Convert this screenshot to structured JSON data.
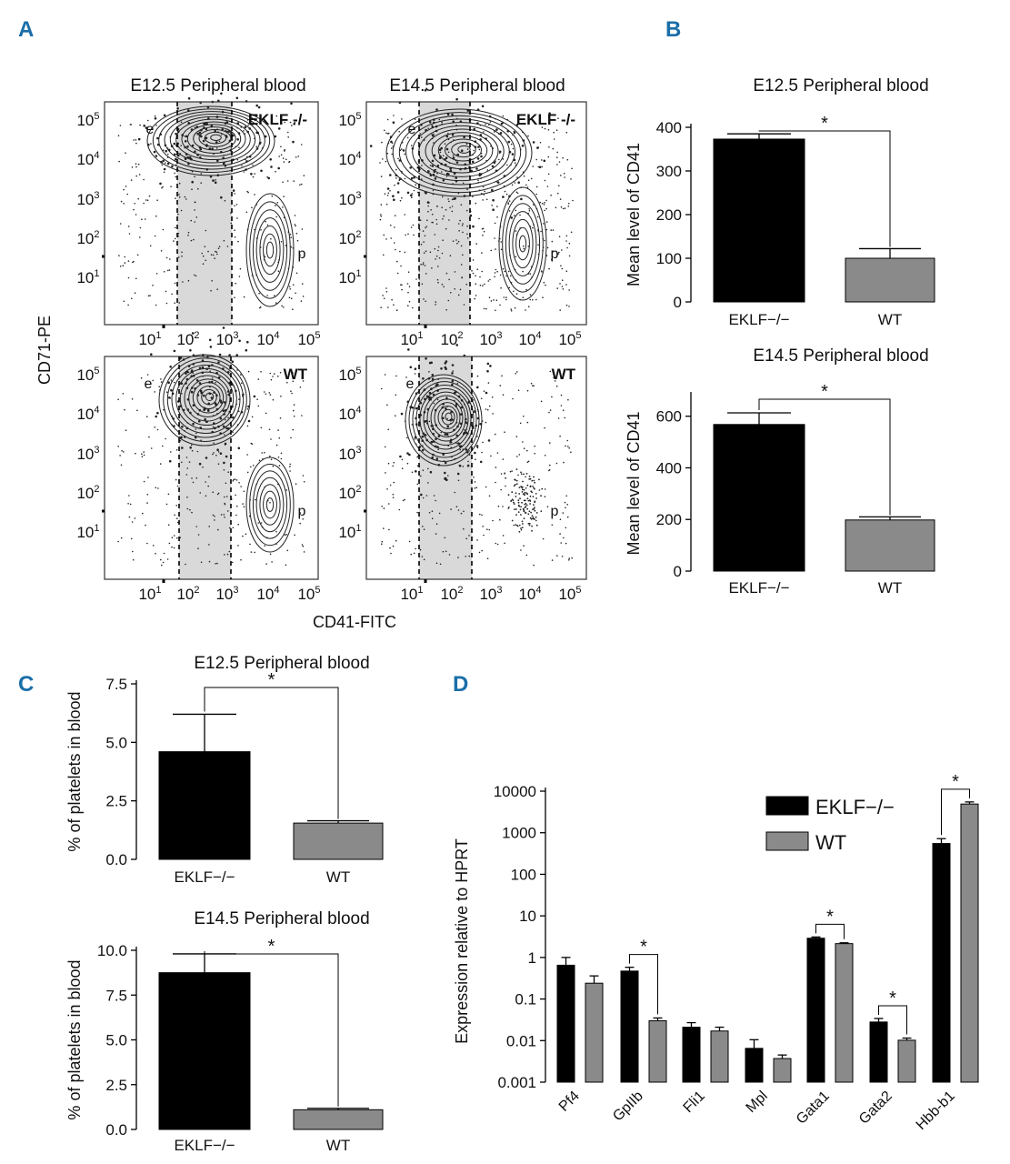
{
  "panels": {
    "a": "A",
    "b": "B",
    "c": "C",
    "d": "D"
  },
  "colors": {
    "eklf": "#000000",
    "wt": "#8a8a8a",
    "gate": "#d9d9d9"
  },
  "flow": {
    "title_left": "E12.5 Peripheral blood",
    "title_right": "E14.5 Peripheral blood",
    "genotype_ko": "EKLF -/-",
    "genotype_wt": "WT",
    "pop_e": "e",
    "pop_p": "p",
    "ylabel": "CD71-PE",
    "xlabel": "CD41-FITC",
    "y_ticks": [
      "10",
      "10",
      "10",
      "10",
      "10"
    ],
    "y_exps": [
      "5",
      "4",
      "3",
      "2",
      "1"
    ],
    "x_ticks": [
      "10",
      "10",
      "10",
      "10",
      "10"
    ],
    "x_exps": [
      "1",
      "2",
      "3",
      "4",
      "5"
    ]
  },
  "chart_data": [
    {
      "id": "B-top",
      "type": "bar",
      "title": "E12.5 Peripheral blood",
      "categories": [
        "EKLF−/−",
        "WT"
      ],
      "values": [
        373,
        100
      ],
      "errors": [
        12,
        22
      ],
      "ylabel": "Mean level of CD41",
      "ylim": [
        0,
        400
      ],
      "yticks": [
        0,
        100,
        200,
        300,
        400
      ],
      "significance": "*"
    },
    {
      "id": "B-bottom",
      "type": "bar",
      "title": "E14.5 Peripheral blood",
      "categories": [
        "EKLF−/−",
        "WT"
      ],
      "values": [
        568,
        198
      ],
      "errors": [
        45,
        12
      ],
      "ylabel": "Mean level of CD41",
      "ylim": [
        0,
        680
      ],
      "yticks": [
        0,
        200,
        400,
        600
      ],
      "significance": "*"
    },
    {
      "id": "C-top",
      "type": "bar",
      "title": "E12.5 Peripheral blood",
      "categories": [
        "EKLF−/−",
        "WT"
      ],
      "values": [
        4.6,
        1.55
      ],
      "errors": [
        1.6,
        0.1
      ],
      "ylabel": "% of platelets in blood",
      "ylim": [
        0,
        7.5
      ],
      "yticks": [
        "0.0",
        "2.5",
        "5.0",
        "7.5"
      ],
      "significance": "*"
    },
    {
      "id": "C-bottom",
      "type": "bar",
      "title": "E14.5 Peripheral blood",
      "categories": [
        "EKLF−/−",
        "WT"
      ],
      "values": [
        8.75,
        1.1
      ],
      "errors": [
        1.05,
        0.08
      ],
      "ylabel": "% of platelets in blood",
      "ylim": [
        0,
        10.0
      ],
      "yticks": [
        "0.0",
        "2.5",
        "5.0",
        "7.5",
        "10.0"
      ],
      "significance": "*"
    },
    {
      "id": "D",
      "type": "bar",
      "scale": "log",
      "ylabel": "Expression relative to HPRT",
      "ylim": [
        0.001,
        10000
      ],
      "yticks": [
        "0.001",
        "0.01",
        "0.1",
        "1",
        "10",
        "100",
        "1000",
        "10000"
      ],
      "categories": [
        "Pf4",
        "GpIIb",
        "Fli1",
        "Mpl",
        "Gata1",
        "Gata2",
        "Hbb-b1"
      ],
      "series": [
        {
          "name": "EKLF−/−",
          "values": [
            0.65,
            0.47,
            0.021,
            0.0065,
            2.9,
            0.028,
            550
          ],
          "errors_upper": [
            1.0,
            0.58,
            0.027,
            0.0105,
            3.1,
            0.034,
            720
          ]
        },
        {
          "name": "WT",
          "values": [
            0.24,
            0.03,
            0.017,
            0.0037,
            2.15,
            0.0102,
            4900
          ],
          "errors_upper": [
            0.36,
            0.035,
            0.021,
            0.0045,
            2.25,
            0.0115,
            5500
          ]
        }
      ],
      "significant_categories": [
        "GpIIb",
        "Gata1",
        "Gata2",
        "Hbb-b1"
      ],
      "significance": "*"
    }
  ]
}
